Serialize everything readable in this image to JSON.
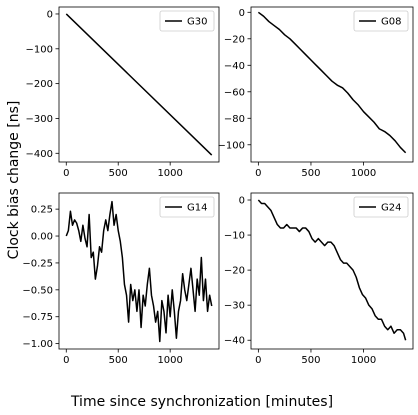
{
  "figure": {
    "ylabel": "Clock bias change [ns]",
    "xlabel": "Time since synchronization [minutes]"
  },
  "chart_data": [
    {
      "type": "line",
      "series": [
        {
          "name": "G30",
          "x": [
            0,
            1400
          ],
          "y": [
            0,
            -405
          ]
        }
      ],
      "xlim": [
        -70,
        1470
      ],
      "ylim": [
        -425,
        20
      ],
      "xticks": [
        0,
        500,
        1000
      ],
      "yticks": [
        0,
        -100,
        -200,
        -300,
        -400
      ],
      "tick_labels_y": [
        "0",
        "−100",
        "−200",
        "−300",
        "−400"
      ],
      "legend": "top-right",
      "grid": false,
      "color": "#000000"
    },
    {
      "type": "line",
      "series": [
        {
          "name": "G08",
          "x": [
            0,
            50,
            100,
            150,
            200,
            250,
            300,
            350,
            400,
            450,
            500,
            550,
            600,
            650,
            700,
            750,
            800,
            850,
            900,
            950,
            1000,
            1050,
            1100,
            1150,
            1200,
            1250,
            1300,
            1350,
            1400
          ],
          "y": [
            0,
            -3,
            -7,
            -10,
            -13,
            -17,
            -20,
            -24,
            -28,
            -32,
            -36,
            -40,
            -44,
            -48,
            -52,
            -55,
            -57,
            -61,
            -66,
            -70,
            -75,
            -79,
            -83,
            -88,
            -90,
            -93,
            -97,
            -102,
            -106
          ]
        }
      ],
      "xlim": [
        -70,
        1470
      ],
      "ylim": [
        -113,
        4
      ],
      "xticks": [
        0,
        500,
        1000
      ],
      "yticks": [
        0,
        -20,
        -40,
        -60,
        -80,
        -100
      ],
      "tick_labels_y": [
        "0",
        "−20",
        "−40",
        "−60",
        "−80",
        "−100"
      ],
      "legend": "top-right",
      "grid": false,
      "color": "#000000"
    },
    {
      "type": "line",
      "series": [
        {
          "name": "G14",
          "x": [
            0,
            20,
            40,
            60,
            80,
            100,
            120,
            140,
            160,
            180,
            200,
            220,
            240,
            260,
            280,
            300,
            320,
            340,
            360,
            380,
            400,
            420,
            440,
            460,
            480,
            500,
            520,
            540,
            560,
            580,
            600,
            620,
            640,
            660,
            680,
            700,
            720,
            740,
            760,
            780,
            800,
            820,
            840,
            860,
            880,
            900,
            920,
            940,
            960,
            980,
            1000,
            1020,
            1040,
            1060,
            1080,
            1100,
            1120,
            1140,
            1160,
            1180,
            1200,
            1220,
            1240,
            1260,
            1280,
            1300,
            1320,
            1340,
            1360,
            1380,
            1400
          ],
          "y": [
            0.0,
            0.05,
            0.23,
            0.1,
            0.15,
            0.12,
            0.05,
            -0.05,
            0.1,
            -0.02,
            -0.1,
            0.2,
            -0.2,
            -0.15,
            -0.4,
            -0.28,
            -0.1,
            -0.15,
            0.05,
            0.15,
            0.05,
            0.2,
            0.32,
            0.1,
            0.2,
            0.05,
            -0.05,
            -0.2,
            -0.45,
            -0.55,
            -0.8,
            -0.45,
            -0.6,
            -0.5,
            -0.7,
            -0.5,
            -0.85,
            -0.55,
            -0.65,
            -0.45,
            -0.3,
            -0.55,
            -0.65,
            -0.8,
            -0.7,
            -0.98,
            -0.6,
            -0.7,
            -0.9,
            -0.55,
            -0.75,
            -0.5,
            -0.7,
            -0.95,
            -0.7,
            -0.6,
            -0.35,
            -0.5,
            -0.6,
            -0.45,
            -0.3,
            -0.5,
            -0.7,
            -0.4,
            -0.55,
            -0.2,
            -0.6,
            -0.4,
            -0.7,
            -0.55,
            -0.65
          ]
        }
      ],
      "xlim": [
        -70,
        1470
      ],
      "ylim": [
        -1.05,
        0.4
      ],
      "xticks": [
        0,
        500,
        1000
      ],
      "yticks": [
        0.25,
        0.0,
        -0.25,
        -0.5,
        -0.75,
        -1.0
      ],
      "tick_labels_y": [
        "0.25",
        "0.00",
        "−0.25",
        "−0.50",
        "−0.75",
        "−1.00"
      ],
      "legend": "top-right",
      "grid": false,
      "color": "#000000"
    },
    {
      "type": "line",
      "series": [
        {
          "name": "G24",
          "x": [
            0,
            30,
            60,
            90,
            120,
            150,
            180,
            210,
            240,
            270,
            300,
            330,
            360,
            390,
            420,
            450,
            480,
            510,
            540,
            570,
            600,
            630,
            660,
            690,
            720,
            750,
            780,
            810,
            840,
            870,
            900,
            930,
            960,
            990,
            1020,
            1050,
            1080,
            1110,
            1140,
            1170,
            1200,
            1230,
            1260,
            1290,
            1320,
            1350,
            1380,
            1400
          ],
          "y": [
            0,
            -1,
            -1,
            -2,
            -3,
            -5,
            -7,
            -8,
            -8,
            -7,
            -8,
            -8,
            -8,
            -9,
            -8,
            -8,
            -9,
            -11,
            -12,
            -11,
            -12,
            -13,
            -12,
            -12,
            -13,
            -15,
            -17,
            -18,
            -18,
            -19,
            -20,
            -22,
            -25,
            -27,
            -28,
            -30,
            -31,
            -33,
            -34,
            -34,
            -36,
            -37,
            -36,
            -38,
            -37,
            -37,
            -38,
            -40
          ]
        }
      ],
      "xlim": [
        -70,
        1470
      ],
      "ylim": [
        -42.5,
        2
      ],
      "xticks": [
        0,
        500,
        1000
      ],
      "yticks": [
        0,
        -10,
        -20,
        -30,
        -40
      ],
      "tick_labels_y": [
        "0",
        "−10",
        "−20",
        "−30",
        "−40"
      ],
      "legend": "top-right",
      "grid": false,
      "color": "#000000"
    }
  ]
}
